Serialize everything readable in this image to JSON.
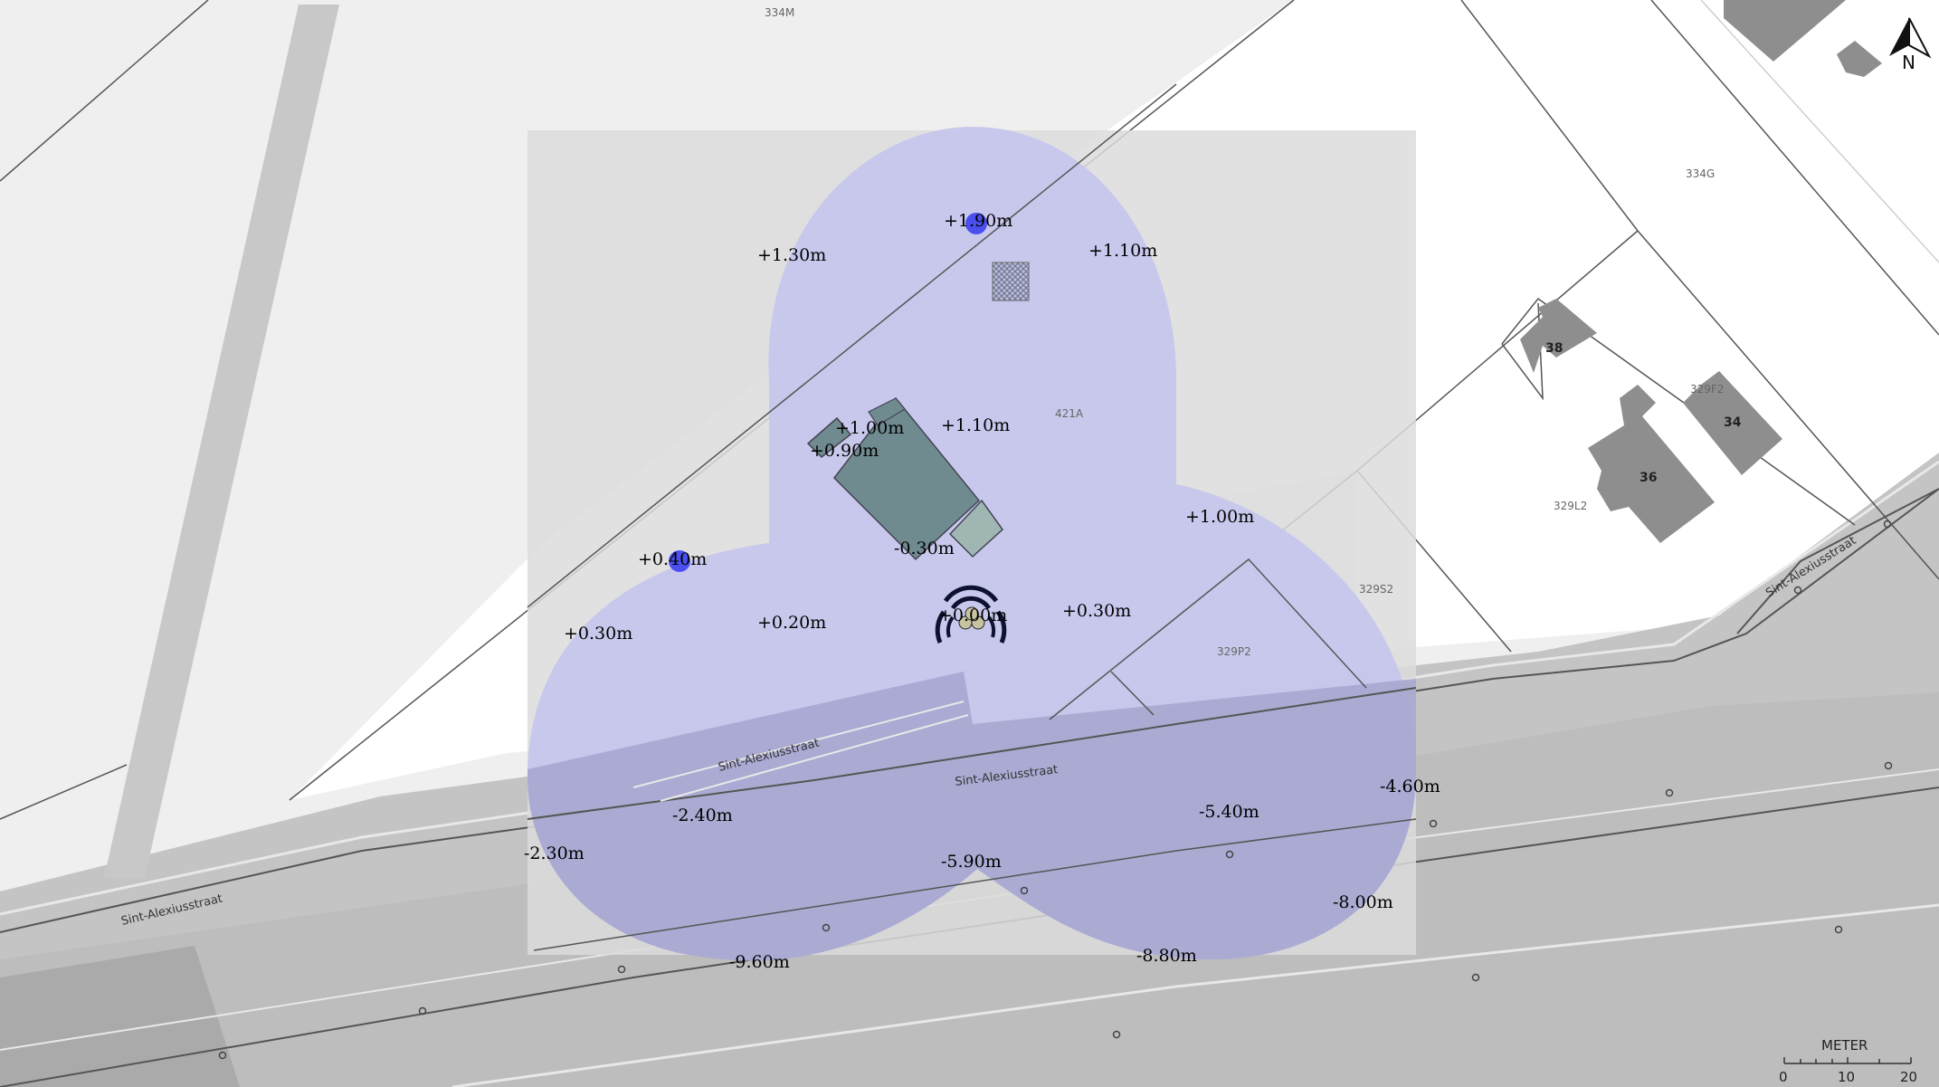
{
  "north_label": "N",
  "scale": {
    "unit": "METER",
    "ticks": [
      "0",
      "10",
      "20"
    ]
  },
  "parcels": [
    "334M",
    "334G",
    "421A",
    "329F2",
    "329L2",
    "329S2",
    "329P2"
  ],
  "house_numbers": [
    "38",
    "36",
    "34"
  ],
  "street_name": "Sint-Alexiusstraat",
  "elevations": [
    "+1.90m",
    "+1.30m",
    "+1.10m",
    "+1.00m",
    "+0.90m",
    "+1.10m",
    "+1.00m",
    "-0.30m",
    "+0.40m",
    "+0.30m",
    "+0.20m",
    "+0.00m",
    "+0.30m",
    "-4.60m",
    "-2.40m",
    "-5.40m",
    "-2.30m",
    "-5.90m",
    "-8.00m",
    "-9.60m",
    "-8.80m"
  ],
  "colors": {
    "background": "#efefef",
    "road": "#c4c4c4",
    "study_area": "#dcdcdc",
    "coverage": "#c5c6ee",
    "building": "#6f8b8f",
    "house": "#8e8e8e",
    "marker": "#4b4ff0"
  }
}
